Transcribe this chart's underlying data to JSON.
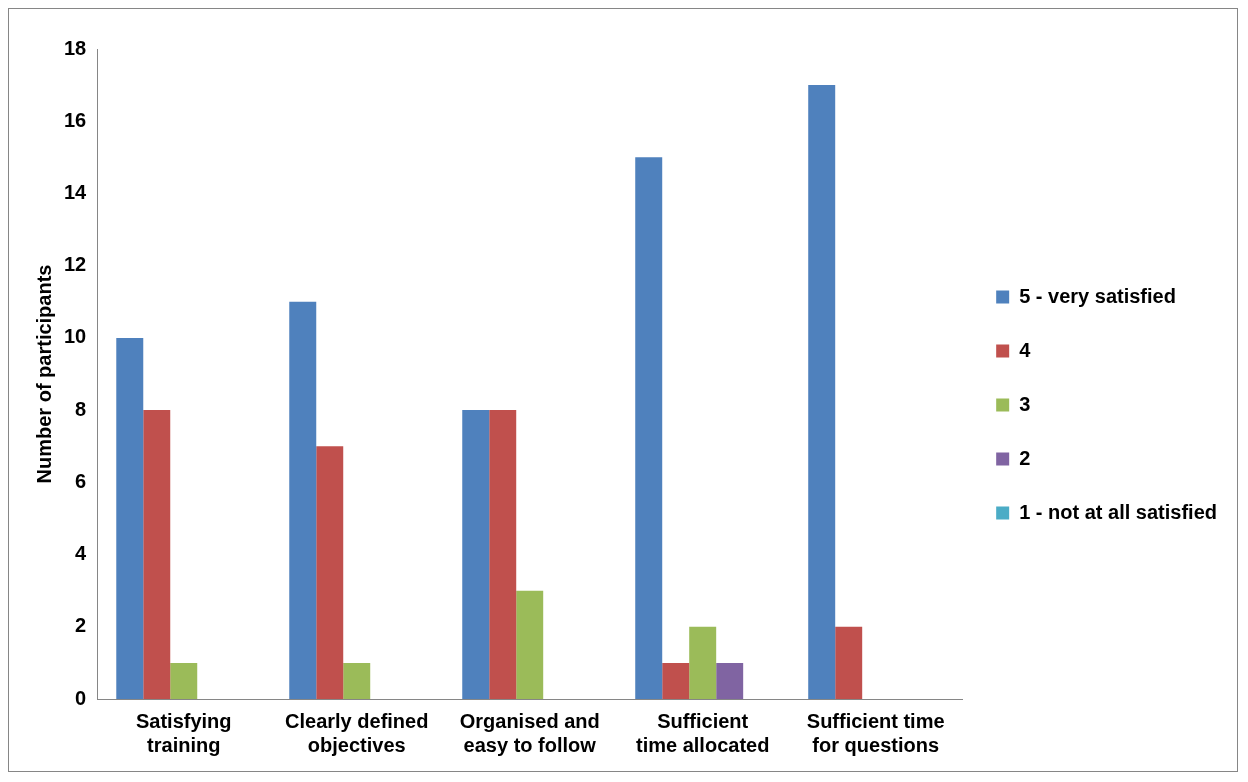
{
  "chart_data": {
    "type": "bar",
    "ylabel": "Number of participants",
    "categories": [
      "Satisfying training",
      "Clearly defined objectives",
      "Organised and easy to follow",
      "Sufficient time allocated",
      "Sufficient time for questions"
    ],
    "series": [
      {
        "name": "5 - very satisfied",
        "color": "#4f81bd",
        "values": [
          10,
          11,
          8,
          15,
          17
        ]
      },
      {
        "name": "4",
        "color": "#c0504d",
        "values": [
          8,
          7,
          8,
          1,
          2
        ]
      },
      {
        "name": "3",
        "color": "#9bbb59",
        "values": [
          1,
          1,
          3,
          2,
          0
        ]
      },
      {
        "name": "2",
        "color": "#8064a2",
        "values": [
          0,
          0,
          0,
          1,
          0
        ]
      },
      {
        "name": "1 - not at all satisfied",
        "color": "#4bacc6",
        "values": [
          0,
          0,
          0,
          0,
          0
        ]
      }
    ],
    "ylim": [
      0,
      18
    ],
    "yticks": [
      0,
      2,
      4,
      6,
      8,
      10,
      12,
      14,
      16,
      18
    ],
    "grid": false,
    "legend": "right"
  }
}
